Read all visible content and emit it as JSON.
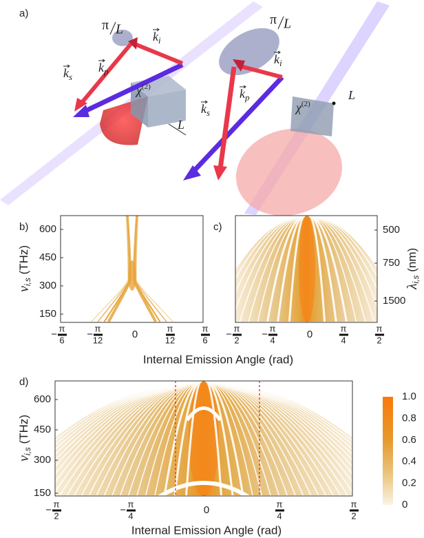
{
  "panel_a": {
    "label": "a)",
    "left": {
      "phase": {
        "num": "π",
        "den": "L"
      },
      "k_i": {
        "symbol": "k",
        "sub": "i"
      },
      "k_s": {
        "symbol": "k",
        "sub": "s"
      },
      "k_p": {
        "symbol": "k",
        "sub": "p"
      },
      "chi": {
        "symbol": "χ",
        "sup": "(2)"
      },
      "length": "L"
    },
    "right": {
      "phase": {
        "num": "π",
        "den": "L"
      },
      "k_i": {
        "symbol": "k",
        "sub": "i"
      },
      "k_s": {
        "symbol": "k",
        "sub": "s"
      },
      "k_p": {
        "symbol": "k",
        "sub": "p"
      },
      "chi": {
        "symbol": "χ",
        "sup": "(2)"
      },
      "length": "L"
    }
  },
  "panel_b": {
    "label": "b)",
    "y_axis": {
      "symbol": "ν",
      "sub": "i,s",
      "unit": "(THz)"
    },
    "yticks": [
      "600",
      "450",
      "300",
      "150"
    ],
    "xticks": [
      {
        "sign": "−",
        "num": "π",
        "den": "6"
      },
      {
        "sign": "−",
        "num": "π",
        "den": "12"
      },
      "0",
      {
        "num": "π",
        "den": "12"
      },
      {
        "num": "π",
        "den": "6"
      }
    ]
  },
  "panel_c": {
    "label": "c)",
    "y2_axis": {
      "symbol": "λ",
      "sub": "i,s",
      "unit": "(nm)"
    },
    "y2ticks": [
      "500",
      "750",
      "1500"
    ],
    "xticks": [
      {
        "sign": "−",
        "num": "π",
        "den": "2"
      },
      {
        "sign": "−",
        "num": "π",
        "den": "4"
      },
      "0",
      {
        "num": "π",
        "den": "4"
      },
      {
        "num": "π",
        "den": "2"
      }
    ]
  },
  "x_axis_label": "Internal Emission Angle (rad)",
  "panel_d": {
    "label": "d)",
    "y_axis": {
      "symbol": "ν",
      "sub": "i,s",
      "unit": "(THz)"
    },
    "yticks": [
      "600",
      "450",
      "300",
      "150"
    ],
    "xticks": [
      {
        "sign": "−",
        "num": "π",
        "den": "2"
      },
      {
        "sign": "−",
        "num": "π",
        "den": "4"
      },
      "0",
      {
        "num": "π",
        "den": "4"
      },
      {
        "num": "π",
        "den": "2"
      }
    ],
    "x_axis_label": "Internal Emission Angle (rad)",
    "colorbar_ticks": [
      "1.0",
      "0.8",
      "0.6",
      "0.4",
      "0.2",
      "0"
    ]
  }
}
